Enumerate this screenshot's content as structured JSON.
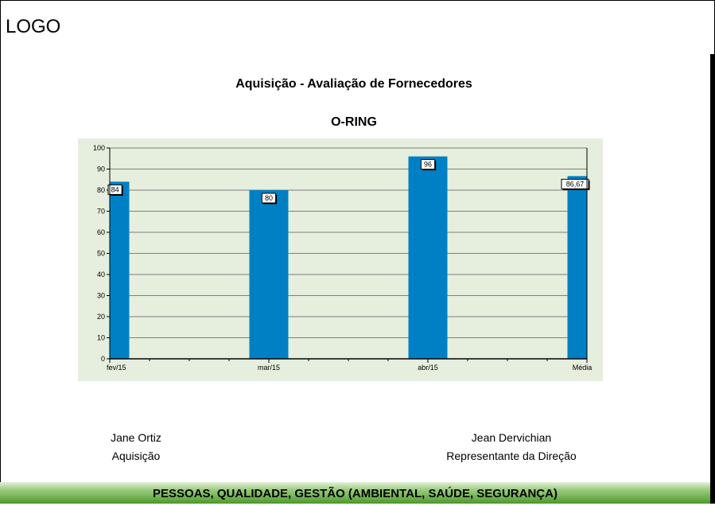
{
  "header": {
    "logo": "LOGO"
  },
  "report": {
    "title": "Aquisição - Avaliação de Fornecedores",
    "subtitle": "O-RING"
  },
  "chart_data": {
    "type": "bar",
    "categories": [
      "fev/15",
      "mar/15",
      "abr/15",
      "Média"
    ],
    "values": [
      84,
      80,
      96,
      86.67
    ],
    "value_labels": [
      "84",
      "80",
      "96",
      "86,67"
    ],
    "yticks": [
      "0",
      "10",
      "20",
      "30",
      "40",
      "50",
      "60",
      "70",
      "80",
      "90",
      "100"
    ],
    "ylim": [
      0,
      100
    ],
    "grid": true,
    "colors": {
      "bar": "#0080c4",
      "plot_bg": "#e6eedd",
      "grid": "#7f7f7f"
    }
  },
  "signatures": {
    "left": {
      "name": "Jane Ortiz",
      "role": "Aquisição"
    },
    "right": {
      "name": "Jean Dervichian",
      "role": "Representante da Direção"
    }
  },
  "footer": {
    "text": "PESSOAS, QUALIDADE, GESTÃO (AMBIENTAL, SAÚDE, SEGURANÇA)"
  }
}
